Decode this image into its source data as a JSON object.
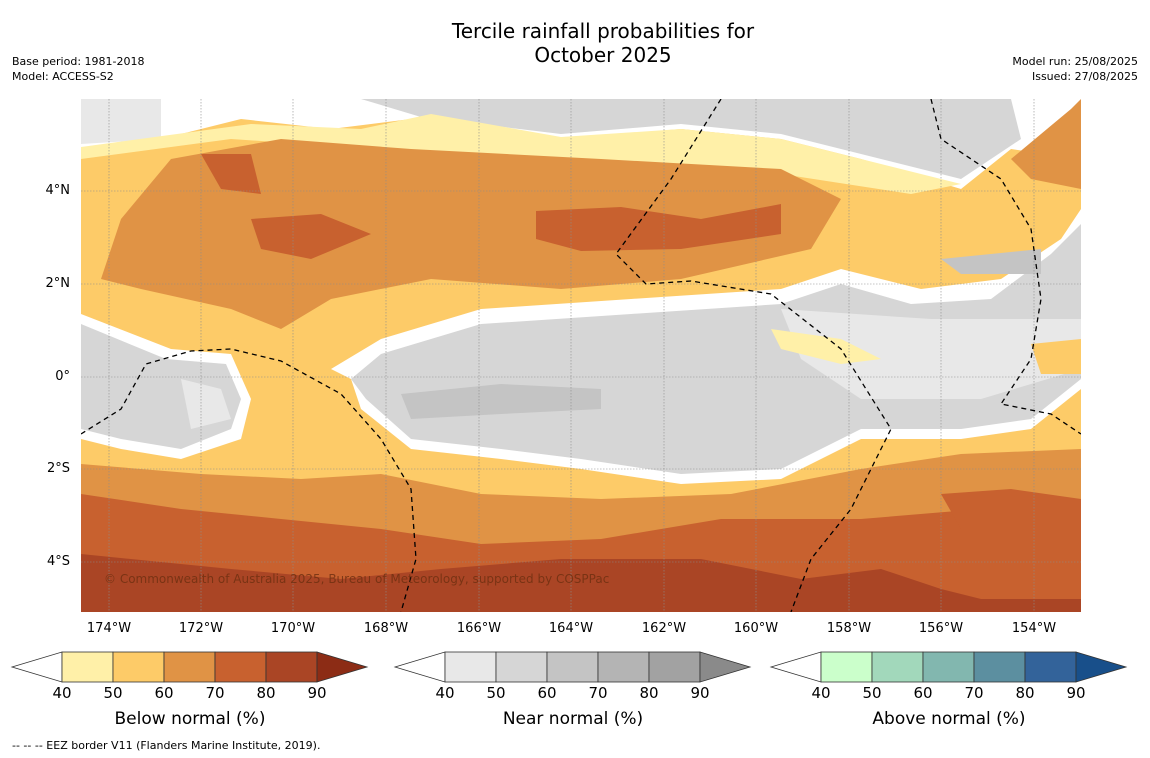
{
  "header": {
    "title_line1": "Tercile rainfall probabilities for",
    "title_line2": "October 2025",
    "base_period": "Base period: 1981-2018",
    "model": "Model: ACCESS-S2",
    "model_run": "Model run: 25/08/2025",
    "issued": "Issued: 27/08/2025"
  },
  "map": {
    "lat_labels": [
      "4°N",
      "2°N",
      "0°",
      "2°S",
      "4°S"
    ],
    "lon_labels": [
      "174°W",
      "172°W",
      "170°W",
      "168°W",
      "166°W",
      "164°W",
      "162°W",
      "160°W",
      "158°W",
      "156°W",
      "154°W"
    ],
    "copyright": "© Commonwealth of Australia 2025, Bureau of Meteorology, supported by COSPPac"
  },
  "colorbars": [
    {
      "label": "Below normal (%)",
      "ticks": [
        "40",
        "50",
        "60",
        "70",
        "80",
        "90"
      ],
      "colors": [
        "#fff0a8",
        "#fdcb68",
        "#e09345",
        "#c8612f",
        "#aa4525",
        "#8c2c15"
      ]
    },
    {
      "label": "Near normal (%)",
      "ticks": [
        "40",
        "50",
        "60",
        "70",
        "80",
        "90"
      ],
      "colors": [
        "#e8e8e8",
        "#d6d6d6",
        "#c4c4c4",
        "#b4b4b4",
        "#a2a2a2",
        "#8a8a8a"
      ]
    },
    {
      "label": "Above normal (%)",
      "ticks": [
        "40",
        "50",
        "60",
        "70",
        "80",
        "90"
      ],
      "colors": [
        "#cbffcb",
        "#a2d8bb",
        "#82b7af",
        "#5c8fa0",
        "#33639a",
        "#184f8a"
      ]
    }
  ],
  "footer": "--  --  -- EEZ border V11 (Flanders Marine Institute, 2019)."
}
